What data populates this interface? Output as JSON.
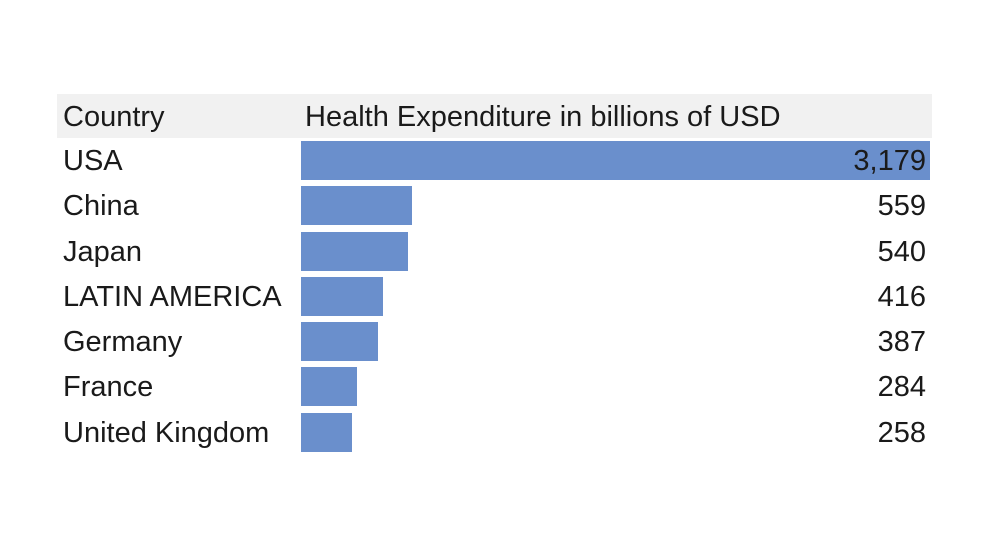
{
  "header": {
    "country_label": "Country",
    "value_label": "Health Expenditure in billions of USD"
  },
  "colors": {
    "bar": "#6a8fcc",
    "header_background": "#f1f1f1"
  },
  "chart_data": {
    "type": "bar",
    "orientation": "horizontal",
    "title": "",
    "xlabel": "Health Expenditure in billions of USD",
    "ylabel": "Country",
    "categories": [
      "USA",
      "China",
      "Japan",
      "LATIN AMERICA",
      "Germany",
      "France",
      "United Kingdom"
    ],
    "values": [
      3179,
      559,
      540,
      416,
      387,
      284,
      258
    ],
    "value_labels": [
      "3,179",
      "559",
      "540",
      "416",
      "387",
      "284",
      "258"
    ],
    "xlim": [
      0,
      3179
    ],
    "grid": false
  }
}
